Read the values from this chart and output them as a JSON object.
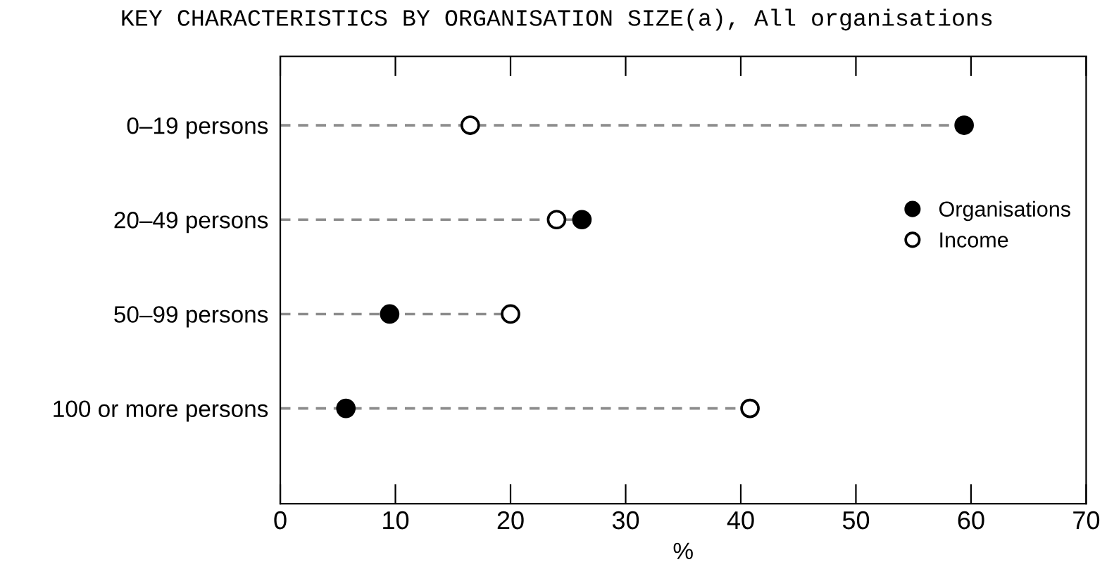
{
  "chart_data": {
    "type": "lollipop",
    "title": "KEY CHARACTERISTICS BY ORGANISATION SIZE(a), All organisations",
    "categories": [
      "0–19 persons",
      "20–49 persons",
      "50–99 persons",
      "100 or more persons"
    ],
    "orientation": "horizontal",
    "series": [
      {
        "name": "Organisations",
        "color": "#000000",
        "marker": "circle",
        "values": [
          59.4,
          26.2,
          9.5,
          5.7
        ]
      },
      {
        "name": "Income",
        "color": "#ffffff",
        "marker": "circle",
        "values": [
          16.5,
          24.0,
          20.0,
          40.8
        ]
      }
    ],
    "xlabel": "%",
    "xlim": [
      0,
      70
    ],
    "xticks": [
      0,
      10,
      20,
      30,
      40,
      50,
      60,
      70
    ],
    "line_style": "dashed",
    "legend": "right"
  }
}
